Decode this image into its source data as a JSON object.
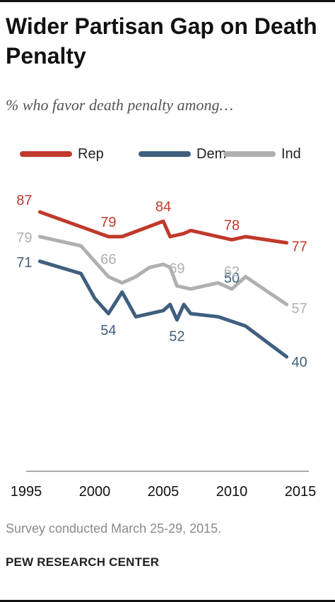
{
  "header": {
    "title": "Wider Partisan Gap on Death Penalty",
    "subtitle": "% who favor death penalty among…"
  },
  "legend": [
    {
      "label": "Rep",
      "color": "#c0392b"
    },
    {
      "label": "Dem",
      "color": "#3f5f7f"
    },
    {
      "label": "Ind",
      "color": "#b0b0b0"
    }
  ],
  "footer": {
    "note": "Survey conducted March 25-29, 2015.",
    "source": "PEW RESEARCH CENTER"
  },
  "chart_data": {
    "type": "line",
    "title": "Wider Partisan Gap on Death Penalty",
    "subtitle": "% who favor death penalty among…",
    "xlabel": "",
    "ylabel": "",
    "xlim": [
      1995,
      2015
    ],
    "ylim": [
      20,
      95
    ],
    "x_ticks": [
      1995,
      2000,
      2005,
      2010,
      2015
    ],
    "grid": false,
    "legend_position": "top",
    "series": [
      {
        "name": "Rep",
        "color": "#c0392b",
        "x": [
          1996,
          2001,
          2002,
          2005,
          2005.5,
          2006.5,
          2007,
          2009,
          2010,
          2011,
          2014
        ],
        "y": [
          87,
          79,
          79,
          84,
          79,
          80,
          81,
          79,
          78,
          79,
          77
        ],
        "labels": [
          {
            "x": 1996,
            "text": "87"
          },
          {
            "x": 2001,
            "text": "79"
          },
          {
            "x": 2005,
            "text": "84"
          },
          {
            "x": 2010,
            "text": "78"
          },
          {
            "x": 2014,
            "text": "77"
          }
        ]
      },
      {
        "name": "Dem",
        "color": "#3f5f7f",
        "x": [
          1996,
          1999,
          2000,
          2001,
          2002,
          2003,
          2004,
          2005,
          2005.5,
          2006,
          2006.5,
          2007,
          2009,
          2011,
          2014
        ],
        "y": [
          71,
          67,
          59,
          54,
          61,
          53,
          54,
          55,
          57,
          52,
          57,
          54,
          53,
          50,
          40
        ],
        "labels": [
          {
            "x": 1996,
            "text": "71"
          },
          {
            "x": 2001,
            "text": "54"
          },
          {
            "x": 2006,
            "text": "52"
          },
          {
            "x": 2010,
            "text": "50"
          },
          {
            "x": 2014,
            "text": "40"
          }
        ]
      },
      {
        "name": "Ind",
        "color": "#b0b0b0",
        "x": [
          1996,
          1999,
          2000,
          2001,
          2002,
          2003,
          2004,
          2005,
          2005.5,
          2006,
          2007,
          2009,
          2010,
          2011,
          2014
        ],
        "y": [
          79,
          76,
          71,
          66,
          64,
          66,
          69,
          70,
          69,
          63,
          62,
          64,
          62,
          66,
          57
        ],
        "labels": [
          {
            "x": 1996,
            "text": "79"
          },
          {
            "x": 2001,
            "text": "66"
          },
          {
            "x": 2006,
            "text": "69"
          },
          {
            "x": 2010,
            "text": "62"
          },
          {
            "x": 2014,
            "text": "57"
          }
        ]
      }
    ]
  }
}
